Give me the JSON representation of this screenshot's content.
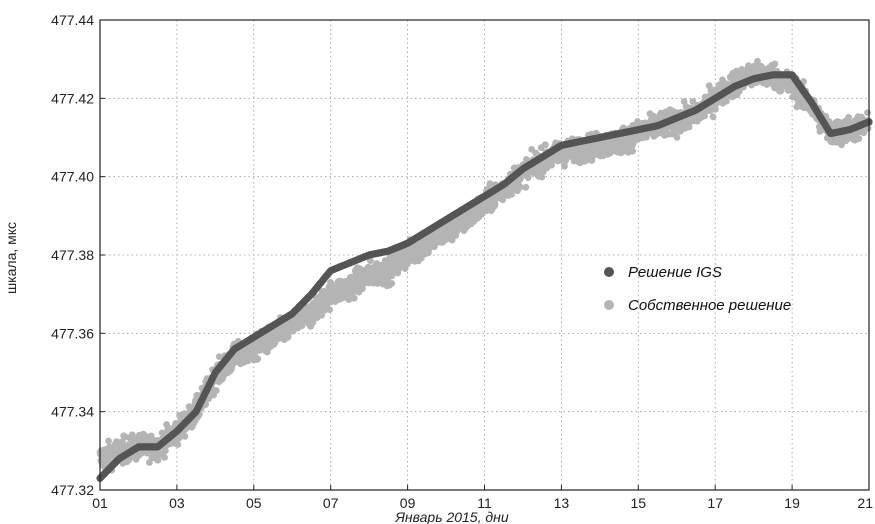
{
  "chart_data": {
    "type": "scatter",
    "title": "",
    "xlabel": "Январь 2015, дни",
    "ylabel": "шкала, мкс",
    "xlim": [
      1,
      21
    ],
    "ylim": [
      477.32,
      477.44
    ],
    "x_ticks": [
      "01",
      "03",
      "05",
      "07",
      "09",
      "11",
      "13",
      "15",
      "17",
      "19",
      "21"
    ],
    "x_tick_values": [
      1,
      3,
      5,
      7,
      9,
      11,
      13,
      15,
      17,
      19,
      21
    ],
    "y_ticks": [
      "477.32",
      "477.34",
      "477.36",
      "477.38",
      "477.40",
      "477.42",
      "477.44"
    ],
    "y_tick_values": [
      477.32,
      477.34,
      477.36,
      477.38,
      477.4,
      477.42,
      477.44
    ],
    "grid": true,
    "legend_position": "right-middle",
    "series": [
      {
        "name": "Собственное решение",
        "color": "#b4b4b4",
        "x": [
          1.0,
          1.5,
          2.0,
          2.5,
          3.0,
          3.5,
          4.0,
          4.5,
          5.0,
          5.5,
          6.0,
          6.5,
          7.0,
          7.5,
          8.0,
          8.5,
          9.0,
          9.5,
          10.0,
          10.5,
          11.0,
          11.5,
          12.0,
          12.5,
          13.0,
          13.5,
          14.0,
          14.5,
          15.0,
          15.5,
          16.0,
          16.5,
          17.0,
          17.5,
          18.0,
          18.5,
          19.0,
          19.5,
          20.0,
          20.5,
          21.0
        ],
        "y": [
          477.328,
          477.33,
          477.331,
          477.331,
          477.335,
          477.34,
          477.349,
          477.354,
          477.356,
          477.359,
          477.362,
          477.365,
          477.37,
          477.372,
          477.375,
          477.376,
          477.38,
          477.383,
          477.386,
          477.389,
          477.393,
          477.397,
          477.401,
          477.404,
          477.406,
          477.407,
          477.408,
          477.409,
          477.411,
          477.413,
          477.414,
          477.416,
          477.42,
          477.424,
          477.426,
          477.426,
          477.423,
          477.418,
          477.411,
          477.412,
          477.413
        ]
      },
      {
        "name": "Решение IGS",
        "color": "#555555",
        "x": [
          1.0,
          1.5,
          2.0,
          2.5,
          3.0,
          3.5,
          4.0,
          4.5,
          5.0,
          5.5,
          6.0,
          6.5,
          7.0,
          7.5,
          8.0,
          8.5,
          9.0,
          9.5,
          10.0,
          10.5,
          11.0,
          11.5,
          12.0,
          12.5,
          13.0,
          13.5,
          14.0,
          14.5,
          15.0,
          15.5,
          16.0,
          16.5,
          17.0,
          17.5,
          18.0,
          18.5,
          19.0,
          19.5,
          20.0,
          20.5,
          21.0
        ],
        "y": [
          477.323,
          477.328,
          477.331,
          477.331,
          477.335,
          477.34,
          477.35,
          477.356,
          477.359,
          477.362,
          477.365,
          477.37,
          477.376,
          477.378,
          477.38,
          477.381,
          477.383,
          477.386,
          477.389,
          477.392,
          477.395,
          477.398,
          477.402,
          477.405,
          477.408,
          477.409,
          477.41,
          477.411,
          477.412,
          477.413,
          477.415,
          477.417,
          477.42,
          477.423,
          477.425,
          477.426,
          477.426,
          477.419,
          477.411,
          477.412,
          477.414
        ]
      }
    ]
  }
}
